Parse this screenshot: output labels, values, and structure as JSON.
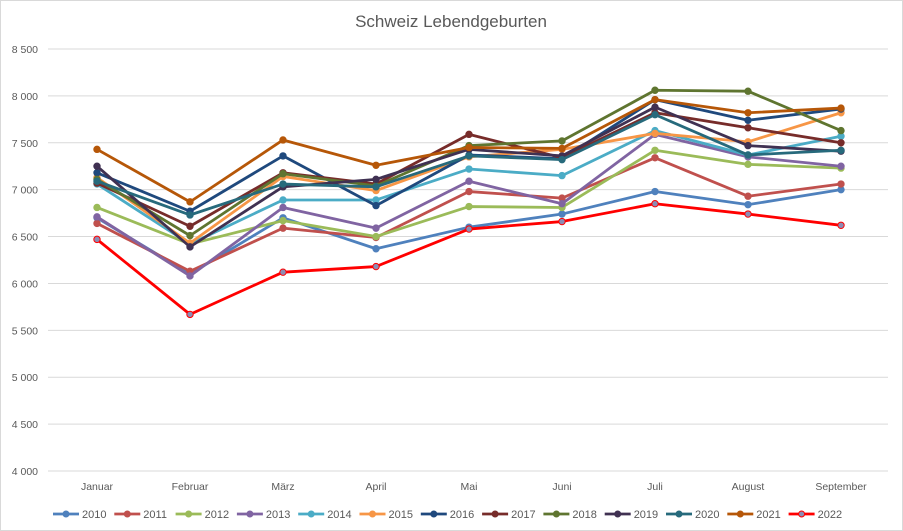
{
  "chart_data": {
    "type": "line",
    "title": "Schweiz Lebendgeburten",
    "xlabel": "",
    "ylabel": "",
    "ylim": [
      4000,
      8500
    ],
    "yticks": [
      4000,
      4500,
      5000,
      5500,
      6000,
      6500,
      7000,
      7500,
      8000,
      8500
    ],
    "ytick_labels": [
      "4 000",
      "4 500",
      "5 000",
      "5 500",
      "6 000",
      "6 500",
      "7 000",
      "7 500",
      "8 000",
      "8 500"
    ],
    "grid": true,
    "legend_position": "bottom",
    "categories": [
      "Januar",
      "Februar",
      "März",
      "April",
      "Mai",
      "Juni",
      "Juli",
      "August",
      "September"
    ],
    "series": [
      {
        "name": "2010",
        "color": "#4F81BD",
        "values": [
          6700,
          6100,
          6700,
          6370,
          6600,
          6740,
          6980,
          6840,
          7000
        ]
      },
      {
        "name": "2011",
        "color": "#C0504D",
        "values": [
          6640,
          6130,
          6590,
          6490,
          6980,
          6910,
          7340,
          6930,
          7060
        ]
      },
      {
        "name": "2012",
        "color": "#9BBB59",
        "values": [
          6810,
          6420,
          6670,
          6500,
          6820,
          6810,
          7420,
          7270,
          7230
        ]
      },
      {
        "name": "2013",
        "color": "#8064A2",
        "values": [
          6710,
          6080,
          6810,
          6590,
          7090,
          6850,
          7590,
          7350,
          7250
        ]
      },
      {
        "name": "2014",
        "color": "#4BACC6",
        "values": [
          7060,
          6420,
          6890,
          6890,
          7220,
          7150,
          7630,
          7370,
          7570
        ]
      },
      {
        "name": "2015",
        "color": "#F79646",
        "values": [
          7130,
          6430,
          7140,
          6990,
          7350,
          7430,
          7600,
          7510,
          7820
        ]
      },
      {
        "name": "2016",
        "color": "#1F497D",
        "values": [
          7180,
          6770,
          7360,
          6830,
          7370,
          7330,
          7960,
          7740,
          7860
        ]
      },
      {
        "name": "2017",
        "color": "#772C2A",
        "values": [
          7070,
          6610,
          7180,
          7060,
          7590,
          7340,
          7820,
          7660,
          7500
        ]
      },
      {
        "name": "2018",
        "color": "#5F7530",
        "values": [
          7110,
          6510,
          7170,
          7040,
          7470,
          7520,
          8060,
          8050,
          7630
        ]
      },
      {
        "name": "2019",
        "color": "#403152",
        "values": [
          7250,
          6390,
          7030,
          7110,
          7430,
          7360,
          7880,
          7470,
          7410
        ]
      },
      {
        "name": "2020",
        "color": "#276A7C",
        "values": [
          7090,
          6730,
          7060,
          7030,
          7360,
          7320,
          7800,
          7370,
          7420
        ]
      },
      {
        "name": "2021",
        "color": "#B65708",
        "values": [
          7430,
          6870,
          7530,
          7260,
          7450,
          7440,
          7960,
          7820,
          7870
        ]
      },
      {
        "name": "2022",
        "color": "#FF0000",
        "marker_color": "#8C8CB4",
        "values": [
          6470,
          5670,
          6120,
          6180,
          6580,
          6660,
          6850,
          6740,
          6620
        ]
      }
    ]
  }
}
